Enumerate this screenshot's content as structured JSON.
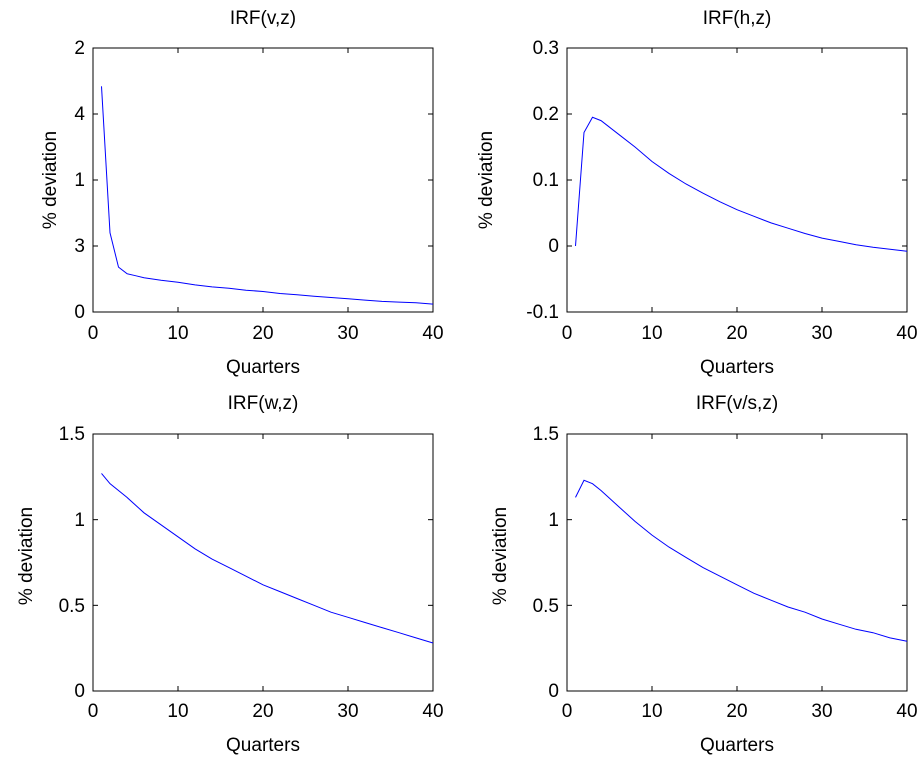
{
  "chart_data": [
    {
      "type": "line",
      "title": "IRF(v,z)",
      "xlabel": "Quarters",
      "ylabel": "% deviation",
      "xlim": [
        0,
        40
      ],
      "ylim": [
        0,
        4
      ],
      "xticks": [
        0,
        10,
        20,
        30,
        40
      ],
      "yticks": [
        0,
        1,
        2,
        3,
        4
      ],
      "ytick_labels": [
        "0",
        "1",
        "2",
        "3",
        "4"
      ],
      "grid": false,
      "line_color": "#0000ff",
      "x": [
        1,
        2,
        3,
        4,
        5,
        6,
        7,
        8,
        10,
        12,
        14,
        16,
        18,
        20,
        22,
        24,
        26,
        28,
        30,
        32,
        34,
        36,
        38,
        40
      ],
      "y": [
        3.42,
        1.2,
        0.68,
        0.58,
        0.55,
        0.52,
        0.5,
        0.48,
        0.45,
        0.41,
        0.38,
        0.36,
        0.33,
        0.31,
        0.28,
        0.26,
        0.24,
        0.22,
        0.2,
        0.18,
        0.16,
        0.15,
        0.14,
        0.12
      ]
    },
    {
      "type": "line",
      "title": "IRF(h,z)",
      "xlabel": "Quarters",
      "ylabel": "% deviation",
      "xlim": [
        0,
        40
      ],
      "ylim": [
        -0.1,
        0.3
      ],
      "xticks": [
        0,
        10,
        20,
        30,
        40
      ],
      "yticks": [
        -0.1,
        0,
        0.1,
        0.2,
        0.3
      ],
      "ytick_labels": [
        "-0.1",
        "0",
        "0.1",
        "0.2",
        "0.3"
      ],
      "grid": false,
      "line_color": "#0000ff",
      "x": [
        1,
        2,
        3,
        4,
        5,
        6,
        8,
        10,
        12,
        14,
        16,
        18,
        20,
        22,
        24,
        26,
        28,
        30,
        32,
        34,
        36,
        38,
        40
      ],
      "y": [
        0.0,
        0.172,
        0.195,
        0.19,
        0.18,
        0.17,
        0.15,
        0.128,
        0.11,
        0.094,
        0.08,
        0.067,
        0.055,
        0.045,
        0.035,
        0.027,
        0.019,
        0.012,
        0.007,
        0.002,
        -0.002,
        -0.005,
        -0.008
      ]
    },
    {
      "type": "line",
      "title": "IRF(w,z)",
      "xlabel": "Quarters",
      "ylabel": "% deviation",
      "xlim": [
        0,
        40
      ],
      "ylim": [
        0,
        1.5
      ],
      "xticks": [
        0,
        10,
        20,
        30,
        40
      ],
      "yticks": [
        0,
        0.5,
        1,
        1.5
      ],
      "ytick_labels": [
        "0",
        "0.5",
        "1",
        "1.5"
      ],
      "grid": false,
      "line_color": "#0000ff",
      "x": [
        1,
        2,
        4,
        6,
        8,
        10,
        12,
        14,
        16,
        18,
        20,
        22,
        24,
        26,
        28,
        30,
        32,
        34,
        36,
        38,
        40
      ],
      "y": [
        1.27,
        1.21,
        1.13,
        1.04,
        0.97,
        0.9,
        0.83,
        0.77,
        0.72,
        0.67,
        0.62,
        0.58,
        0.54,
        0.5,
        0.46,
        0.43,
        0.4,
        0.37,
        0.34,
        0.31,
        0.28
      ]
    },
    {
      "type": "line",
      "title": "IRF(v/s,z)",
      "xlabel": "Quarters",
      "ylabel": "% deviation",
      "xlim": [
        0,
        40
      ],
      "ylim": [
        0,
        1.5
      ],
      "xticks": [
        0,
        10,
        20,
        30,
        40
      ],
      "yticks": [
        0,
        0.5,
        1,
        1.5
      ],
      "ytick_labels": [
        "0",
        "0.5",
        "1",
        "1.5"
      ],
      "grid": false,
      "line_color": "#0000ff",
      "x": [
        1,
        2,
        3,
        4,
        6,
        8,
        10,
        12,
        14,
        16,
        18,
        20,
        22,
        24,
        26,
        28,
        30,
        32,
        34,
        36,
        38,
        40
      ],
      "y": [
        1.13,
        1.23,
        1.21,
        1.17,
        1.08,
        0.99,
        0.91,
        0.84,
        0.78,
        0.72,
        0.67,
        0.62,
        0.57,
        0.53,
        0.49,
        0.46,
        0.42,
        0.39,
        0.36,
        0.34,
        0.31,
        0.29
      ]
    }
  ]
}
